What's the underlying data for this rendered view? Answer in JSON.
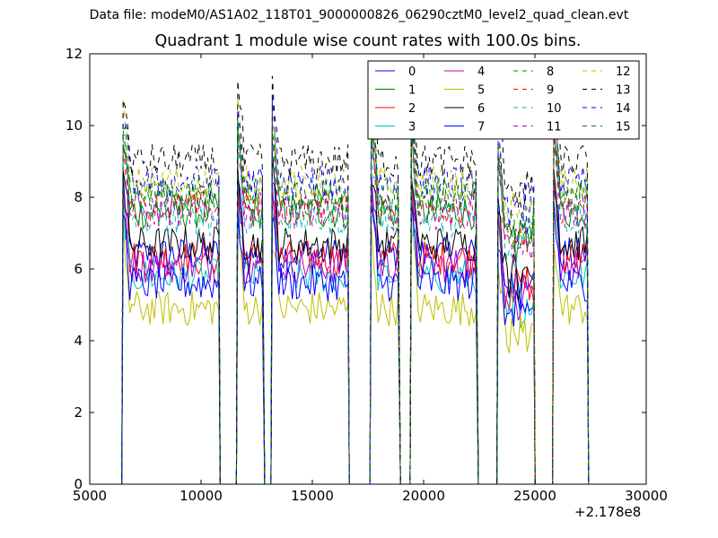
{
  "chart_data": {
    "type": "line",
    "suptitle": "Data file: modeM0/AS1A02_118T01_9000000826_06290cztM0_level2_quad_clean.evt",
    "title": "Quadrant 1 module wise count rates with 100.0s bins.",
    "xlabel": "",
    "ylabel": "",
    "x_offset_label": "+2.178e8",
    "xlim": [
      5000,
      30000
    ],
    "ylim": [
      0,
      12
    ],
    "xticks": [
      5000,
      10000,
      15000,
      20000,
      25000,
      30000
    ],
    "yticks": [
      0,
      2,
      4,
      6,
      8,
      10,
      12
    ],
    "legend_position": "top-right",
    "legend_columns": 4,
    "bin_size_s": 100,
    "gaps": [
      [
        10850,
        11600
      ],
      [
        12850,
        13150
      ],
      [
        16650,
        17600
      ],
      [
        18950,
        19400
      ],
      [
        22450,
        23300
      ],
      [
        25000,
        25800
      ]
    ],
    "segments": [
      [
        6500,
        10800
      ],
      [
        11650,
        12800
      ],
      [
        13200,
        16600
      ],
      [
        17650,
        18900
      ],
      [
        19450,
        22400
      ],
      [
        23350,
        24950
      ],
      [
        25850,
        27350
      ]
    ],
    "series": [
      {
        "name": "0",
        "color": "#0000ff",
        "dash": "solid",
        "level": 6.5
      },
      {
        "name": "1",
        "color": "#008000",
        "dash": "solid",
        "level": 7.6
      },
      {
        "name": "2",
        "color": "#ff0000",
        "dash": "solid",
        "level": 6.2
      },
      {
        "name": "3",
        "color": "#00bfbf",
        "dash": "solid",
        "level": 5.9
      },
      {
        "name": "4",
        "color": "#bf00bf",
        "dash": "solid",
        "level": 6.1
      },
      {
        "name": "5",
        "color": "#bfbf00",
        "dash": "solid",
        "level": 4.8
      },
      {
        "name": "6",
        "color": "#000000",
        "dash": "solid",
        "level": 6.8
      },
      {
        "name": "7",
        "color": "#0000ff",
        "dash": "solid",
        "level": 5.6
      },
      {
        "name": "8",
        "color": "#008000",
        "dash": "dashed",
        "level": 8.0
      },
      {
        "name": "9",
        "color": "#ff0000",
        "dash": "dashed",
        "level": 7.8
      },
      {
        "name": "10",
        "color": "#00bfbf",
        "dash": "dashed",
        "level": 7.4
      },
      {
        "name": "11",
        "color": "#bf00bf",
        "dash": "dashed",
        "level": 7.5
      },
      {
        "name": "12",
        "color": "#bfbf00",
        "dash": "dashed",
        "level": 8.5
      },
      {
        "name": "13",
        "color": "#000000",
        "dash": "dashed",
        "level": 9.0
      },
      {
        "name": "14",
        "color": "#0000ff",
        "dash": "dashed",
        "level": 8.3
      },
      {
        "name": "15",
        "color": "#008000",
        "dash": "dashed",
        "level": 8.1
      }
    ]
  }
}
